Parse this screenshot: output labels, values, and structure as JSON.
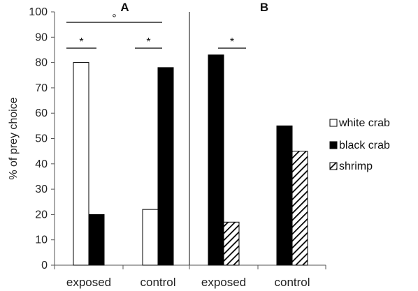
{
  "chart_data": {
    "type": "bar",
    "ylabel": "% of prey choice",
    "ylim": [
      0,
      100
    ],
    "yticks": [
      0,
      10,
      20,
      30,
      40,
      50,
      60,
      70,
      80,
      90,
      100
    ],
    "grid": false,
    "legend_position": "right",
    "series": [
      {
        "name": "white crab",
        "color": "#ffffff",
        "fill": "white"
      },
      {
        "name": "black crab",
        "color": "#000000",
        "fill": "black"
      },
      {
        "name": "shrimp",
        "color": "#000000",
        "fill": "hatched"
      }
    ],
    "panels": [
      {
        "label": "A",
        "categories": [
          "exposed",
          "control"
        ],
        "groups": [
          {
            "category": "exposed",
            "bars": [
              {
                "series": "white crab",
                "value": 80
              },
              {
                "series": "black crab",
                "value": 20
              }
            ]
          },
          {
            "category": "control",
            "bars": [
              {
                "series": "white crab",
                "value": 22
              },
              {
                "series": "black crab",
                "value": 78
              }
            ]
          }
        ],
        "annotations": [
          {
            "text": "*",
            "spans": "exposed"
          },
          {
            "text": "*",
            "spans": "control"
          },
          {
            "text": "°",
            "spans": "exposed-control"
          }
        ]
      },
      {
        "label": "B",
        "categories": [
          "exposed",
          "control"
        ],
        "groups": [
          {
            "category": "exposed",
            "bars": [
              {
                "series": "black crab",
                "value": 83
              },
              {
                "series": "shrimp",
                "value": 17
              }
            ]
          },
          {
            "category": "control",
            "bars": [
              {
                "series": "black crab",
                "value": 55
              },
              {
                "series": "shrimp",
                "value": 45
              }
            ]
          }
        ],
        "annotations": [
          {
            "text": "*",
            "spans": "exposed"
          }
        ]
      }
    ]
  }
}
